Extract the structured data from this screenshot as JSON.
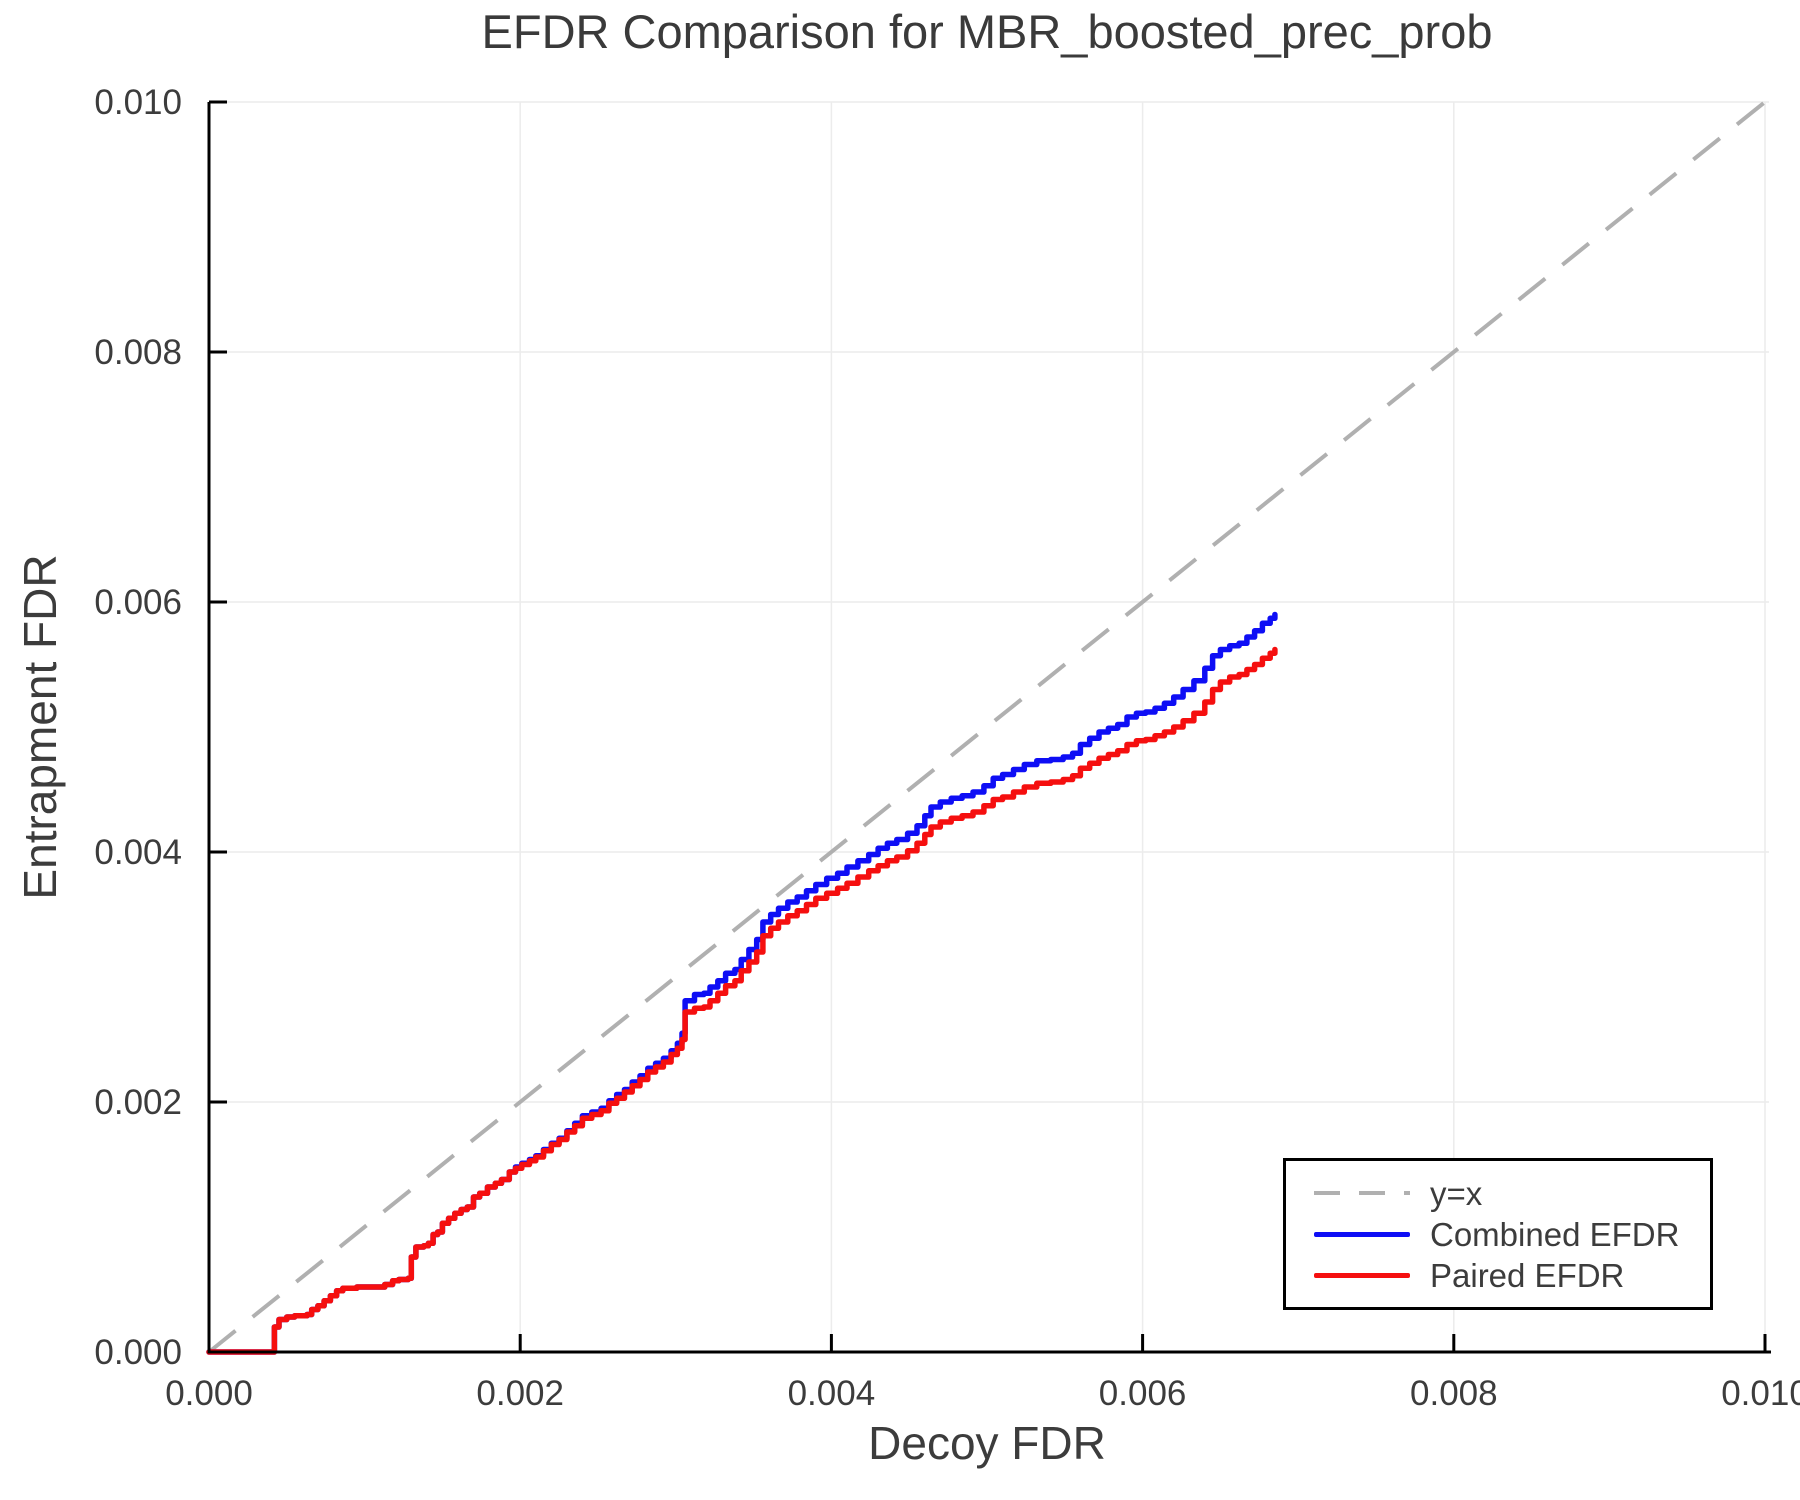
{
  "figure": {
    "title": "EFDR Comparison for MBR_boosted_prec_prob",
    "xlabel": "Decoy FDR",
    "ylabel": "Entrapment FDR"
  },
  "legend": {
    "entries": [
      {
        "label": "y=x",
        "style": "dashed",
        "color": "#b0b0b0"
      },
      {
        "label": "Combined EFDR",
        "style": "solid",
        "color": "#0e0ef5"
      },
      {
        "label": "Paired EFDR",
        "style": "solid",
        "color": "#f50f0f"
      }
    ]
  },
  "chart_data": {
    "type": "line",
    "title": "EFDR Comparison for MBR_boosted_prec_prob",
    "xlabel": "Decoy FDR",
    "ylabel": "Entrapment FDR",
    "xlim": [
      0.0,
      0.01
    ],
    "ylim": [
      0.0,
      0.01
    ],
    "grid": true,
    "legend_position": "bottom-right",
    "xticks": {
      "values": [
        0.0,
        0.002,
        0.004,
        0.006,
        0.008,
        0.01
      ],
      "labels": [
        "0.000",
        "0.002",
        "0.004",
        "0.006",
        "0.008",
        "0.010"
      ]
    },
    "yticks": {
      "values": [
        0.0,
        0.002,
        0.004,
        0.006,
        0.008,
        0.01
      ],
      "labels": [
        "0.000",
        "0.002",
        "0.004",
        "0.006",
        "0.008",
        "0.010"
      ]
    },
    "reference_line": {
      "name": "y=x",
      "from": [
        0.0,
        0.0
      ],
      "to": [
        0.01,
        0.01
      ],
      "style": "dashed",
      "color": "#b0b0b0"
    },
    "style": {
      "grid_color": "#ececec",
      "axis_color": "#000000",
      "tick_text_color": "#3c3c3c",
      "line_width": 5.5
    },
    "unit_scale": 0.001,
    "series": [
      {
        "name": "Combined EFDR",
        "color": "#0e0ef5",
        "points_milli": [
          [
            0,
            0
          ],
          [
            0.4,
            0
          ],
          [
            0.42,
            0.2
          ],
          [
            0.45,
            0.26
          ],
          [
            0.5,
            0.28
          ],
          [
            0.55,
            0.29
          ],
          [
            0.63,
            0.3
          ],
          [
            0.66,
            0.34
          ],
          [
            0.7,
            0.37
          ],
          [
            0.74,
            0.41
          ],
          [
            0.78,
            0.45
          ],
          [
            0.82,
            0.49
          ],
          [
            0.86,
            0.51
          ],
          [
            0.95,
            0.52
          ],
          [
            1.05,
            0.52
          ],
          [
            1.13,
            0.54
          ],
          [
            1.18,
            0.57
          ],
          [
            1.22,
            0.58
          ],
          [
            1.28,
            0.59
          ],
          [
            1.3,
            0.76
          ],
          [
            1.33,
            0.84
          ],
          [
            1.38,
            0.85
          ],
          [
            1.41,
            0.87
          ],
          [
            1.44,
            0.94
          ],
          [
            1.47,
            0.96
          ],
          [
            1.5,
            1.03
          ],
          [
            1.54,
            1.07
          ],
          [
            1.58,
            1.11
          ],
          [
            1.62,
            1.14
          ],
          [
            1.66,
            1.16
          ],
          [
            1.7,
            1.24
          ],
          [
            1.74,
            1.27
          ],
          [
            1.79,
            1.32
          ],
          [
            1.84,
            1.35
          ],
          [
            1.88,
            1.38
          ],
          [
            1.93,
            1.44
          ],
          [
            1.97,
            1.48
          ],
          [
            2.01,
            1.51
          ],
          [
            2.06,
            1.54
          ],
          [
            2.1,
            1.57
          ],
          [
            2.15,
            1.62
          ],
          [
            2.2,
            1.67
          ],
          [
            2.25,
            1.71
          ],
          [
            2.3,
            1.77
          ],
          [
            2.35,
            1.83
          ],
          [
            2.4,
            1.89
          ],
          [
            2.46,
            1.92
          ],
          [
            2.52,
            1.95
          ],
          [
            2.57,
            2.01
          ],
          [
            2.62,
            2.06
          ],
          [
            2.67,
            2.1
          ],
          [
            2.72,
            2.16
          ],
          [
            2.77,
            2.21
          ],
          [
            2.82,
            2.27
          ],
          [
            2.87,
            2.31
          ],
          [
            2.92,
            2.35
          ],
          [
            2.97,
            2.41
          ],
          [
            3.01,
            2.47
          ],
          [
            3.04,
            2.55
          ],
          [
            3.06,
            2.81
          ],
          [
            3.12,
            2.86
          ],
          [
            3.18,
            2.87
          ],
          [
            3.22,
            2.92
          ],
          [
            3.27,
            2.97
          ],
          [
            3.32,
            3.03
          ],
          [
            3.38,
            3.06
          ],
          [
            3.42,
            3.14
          ],
          [
            3.47,
            3.22
          ],
          [
            3.52,
            3.3
          ],
          [
            3.56,
            3.44
          ],
          [
            3.61,
            3.5
          ],
          [
            3.66,
            3.55
          ],
          [
            3.72,
            3.6
          ],
          [
            3.78,
            3.64
          ],
          [
            3.84,
            3.69
          ],
          [
            3.9,
            3.74
          ],
          [
            3.97,
            3.79
          ],
          [
            4.04,
            3.83
          ],
          [
            4.1,
            3.88
          ],
          [
            4.17,
            3.93
          ],
          [
            4.24,
            3.98
          ],
          [
            4.3,
            4.03
          ],
          [
            4.36,
            4.07
          ],
          [
            4.42,
            4.1
          ],
          [
            4.49,
            4.15
          ],
          [
            4.55,
            4.21
          ],
          [
            4.6,
            4.29
          ],
          [
            4.64,
            4.36
          ],
          [
            4.7,
            4.4
          ],
          [
            4.77,
            4.43
          ],
          [
            4.84,
            4.45
          ],
          [
            4.91,
            4.48
          ],
          [
            4.98,
            4.53
          ],
          [
            5.04,
            4.59
          ],
          [
            5.1,
            4.62
          ],
          [
            5.17,
            4.66
          ],
          [
            5.24,
            4.7
          ],
          [
            5.32,
            4.73
          ],
          [
            5.41,
            4.74
          ],
          [
            5.49,
            4.76
          ],
          [
            5.55,
            4.79
          ],
          [
            5.6,
            4.86
          ],
          [
            5.66,
            4.91
          ],
          [
            5.72,
            4.96
          ],
          [
            5.78,
            4.99
          ],
          [
            5.84,
            5.02
          ],
          [
            5.9,
            5.08
          ],
          [
            5.96,
            5.11
          ],
          [
            6.02,
            5.12
          ],
          [
            6.08,
            5.15
          ],
          [
            6.14,
            5.19
          ],
          [
            6.2,
            5.24
          ],
          [
            6.26,
            5.3
          ],
          [
            6.33,
            5.37
          ],
          [
            6.4,
            5.47
          ],
          [
            6.45,
            5.57
          ],
          [
            6.5,
            5.62
          ],
          [
            6.56,
            5.65
          ],
          [
            6.62,
            5.67
          ],
          [
            6.67,
            5.72
          ],
          [
            6.72,
            5.77
          ],
          [
            6.77,
            5.83
          ],
          [
            6.82,
            5.87
          ],
          [
            6.85,
            5.9
          ]
        ]
      },
      {
        "name": "Paired EFDR",
        "color": "#f50f0f",
        "points_milli": [
          [
            0,
            0
          ],
          [
            0.4,
            0
          ],
          [
            0.42,
            0.2
          ],
          [
            0.45,
            0.26
          ],
          [
            0.5,
            0.28
          ],
          [
            0.55,
            0.29
          ],
          [
            0.63,
            0.3
          ],
          [
            0.66,
            0.34
          ],
          [
            0.7,
            0.37
          ],
          [
            0.74,
            0.41
          ],
          [
            0.78,
            0.45
          ],
          [
            0.82,
            0.49
          ],
          [
            0.86,
            0.51
          ],
          [
            0.95,
            0.52
          ],
          [
            1.05,
            0.52
          ],
          [
            1.13,
            0.54
          ],
          [
            1.18,
            0.57
          ],
          [
            1.22,
            0.58
          ],
          [
            1.28,
            0.59
          ],
          [
            1.3,
            0.76
          ],
          [
            1.33,
            0.84
          ],
          [
            1.38,
            0.85
          ],
          [
            1.41,
            0.87
          ],
          [
            1.44,
            0.94
          ],
          [
            1.47,
            0.96
          ],
          [
            1.5,
            1.03
          ],
          [
            1.54,
            1.07
          ],
          [
            1.58,
            1.11
          ],
          [
            1.62,
            1.14
          ],
          [
            1.66,
            1.16
          ],
          [
            1.7,
            1.24
          ],
          [
            1.74,
            1.27
          ],
          [
            1.79,
            1.32
          ],
          [
            1.84,
            1.35
          ],
          [
            1.88,
            1.38
          ],
          [
            1.93,
            1.44
          ],
          [
            1.97,
            1.47
          ],
          [
            2.01,
            1.5
          ],
          [
            2.06,
            1.53
          ],
          [
            2.1,
            1.56
          ],
          [
            2.15,
            1.61
          ],
          [
            2.2,
            1.66
          ],
          [
            2.25,
            1.7
          ],
          [
            2.3,
            1.76
          ],
          [
            2.35,
            1.81
          ],
          [
            2.4,
            1.87
          ],
          [
            2.46,
            1.9
          ],
          [
            2.52,
            1.93
          ],
          [
            2.57,
            1.99
          ],
          [
            2.62,
            2.03
          ],
          [
            2.67,
            2.08
          ],
          [
            2.72,
            2.13
          ],
          [
            2.77,
            2.18
          ],
          [
            2.82,
            2.24
          ],
          [
            2.87,
            2.28
          ],
          [
            2.92,
            2.32
          ],
          [
            2.97,
            2.38
          ],
          [
            3.01,
            2.43
          ],
          [
            3.04,
            2.5
          ],
          [
            3.06,
            2.72
          ],
          [
            3.12,
            2.75
          ],
          [
            3.18,
            2.76
          ],
          [
            3.22,
            2.81
          ],
          [
            3.27,
            2.87
          ],
          [
            3.32,
            2.93
          ],
          [
            3.38,
            2.97
          ],
          [
            3.42,
            3.05
          ],
          [
            3.47,
            3.12
          ],
          [
            3.52,
            3.2
          ],
          [
            3.56,
            3.33
          ],
          [
            3.61,
            3.39
          ],
          [
            3.66,
            3.44
          ],
          [
            3.72,
            3.49
          ],
          [
            3.78,
            3.53
          ],
          [
            3.84,
            3.58
          ],
          [
            3.9,
            3.63
          ],
          [
            3.97,
            3.67
          ],
          [
            4.04,
            3.71
          ],
          [
            4.1,
            3.75
          ],
          [
            4.17,
            3.8
          ],
          [
            4.24,
            3.85
          ],
          [
            4.3,
            3.89
          ],
          [
            4.36,
            3.93
          ],
          [
            4.42,
            3.96
          ],
          [
            4.49,
            4.01
          ],
          [
            4.55,
            4.07
          ],
          [
            4.6,
            4.14
          ],
          [
            4.64,
            4.2
          ],
          [
            4.7,
            4.24
          ],
          [
            4.77,
            4.27
          ],
          [
            4.84,
            4.29
          ],
          [
            4.91,
            4.32
          ],
          [
            4.98,
            4.37
          ],
          [
            5.04,
            4.42
          ],
          [
            5.1,
            4.44
          ],
          [
            5.17,
            4.48
          ],
          [
            5.24,
            4.52
          ],
          [
            5.32,
            4.55
          ],
          [
            5.41,
            4.56
          ],
          [
            5.49,
            4.58
          ],
          [
            5.55,
            4.61
          ],
          [
            5.6,
            4.67
          ],
          [
            5.66,
            4.71
          ],
          [
            5.72,
            4.75
          ],
          [
            5.78,
            4.78
          ],
          [
            5.84,
            4.81
          ],
          [
            5.9,
            4.86
          ],
          [
            5.96,
            4.89
          ],
          [
            6.02,
            4.9
          ],
          [
            6.08,
            4.93
          ],
          [
            6.14,
            4.96
          ],
          [
            6.2,
            5
          ],
          [
            6.26,
            5.05
          ],
          [
            6.33,
            5.11
          ],
          [
            6.4,
            5.2
          ],
          [
            6.45,
            5.3
          ],
          [
            6.5,
            5.36
          ],
          [
            6.56,
            5.4
          ],
          [
            6.62,
            5.42
          ],
          [
            6.67,
            5.46
          ],
          [
            6.72,
            5.5
          ],
          [
            6.77,
            5.55
          ],
          [
            6.82,
            5.59
          ],
          [
            6.85,
            5.62
          ]
        ]
      }
    ]
  }
}
